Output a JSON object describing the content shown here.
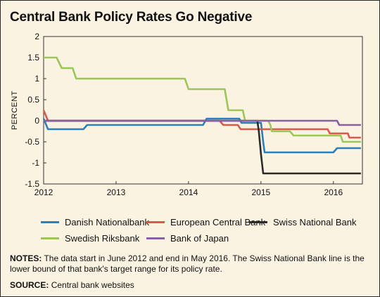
{
  "title": "Central Bank Policy Rates Go Negative",
  "notes_label": "NOTES:",
  "notes_text": "The data start in June 2012 and end in May 2016. The Swiss National Bank line is the lower bound of that bank's target range for its policy rate.",
  "source_label": "SOURCE:",
  "source_text": "Central bank websites",
  "chart_data": {
    "type": "line",
    "title": "Central Bank Policy Rates Go Negative",
    "ylabel": "PERCENT",
    "xlabel": "",
    "ylim": [
      -1.5,
      2
    ],
    "xlim": [
      2012.0,
      2016.4
    ],
    "y_ticks": [
      2,
      1.5,
      1,
      0.5,
      0,
      -0.5,
      -1,
      -1.5
    ],
    "x_ticks": [
      2012,
      2013,
      2014,
      2015,
      2016
    ],
    "grid": false,
    "legend_position": "bottom",
    "series": [
      {
        "name": "Danish Nationalbank",
        "color": "#2d7fb8",
        "points": [
          [
            2012.0,
            0.05
          ],
          [
            2012.06,
            -0.2
          ],
          [
            2012.55,
            -0.2
          ],
          [
            2012.6,
            -0.1
          ],
          [
            2014.2,
            -0.1
          ],
          [
            2014.25,
            0.05
          ],
          [
            2014.7,
            0.05
          ],
          [
            2014.73,
            -0.05
          ],
          [
            2015.0,
            -0.05
          ],
          [
            2015.03,
            -0.5
          ],
          [
            2015.05,
            -0.75
          ],
          [
            2016.0,
            -0.75
          ],
          [
            2016.05,
            -0.65
          ],
          [
            2016.38,
            -0.65
          ]
        ]
      },
      {
        "name": "European Central Bank",
        "color": "#d9594a",
        "points": [
          [
            2012.0,
            0.25
          ],
          [
            2012.06,
            0.0
          ],
          [
            2014.43,
            0.0
          ],
          [
            2014.48,
            -0.1
          ],
          [
            2014.68,
            -0.1
          ],
          [
            2014.72,
            -0.2
          ],
          [
            2015.92,
            -0.2
          ],
          [
            2015.95,
            -0.3
          ],
          [
            2016.2,
            -0.3
          ],
          [
            2016.22,
            -0.4
          ],
          [
            2016.38,
            -0.4
          ]
        ]
      },
      {
        "name": "Swiss National Bank",
        "color": "#2b2b2b",
        "points": [
          [
            2012.0,
            0.0
          ],
          [
            2014.95,
            0.0
          ],
          [
            2014.97,
            -0.25
          ],
          [
            2015.0,
            -0.8
          ],
          [
            2015.03,
            -1.25
          ],
          [
            2016.38,
            -1.25
          ]
        ]
      },
      {
        "name": "Swedish Riksbank",
        "color": "#9cc55a",
        "points": [
          [
            2012.0,
            1.5
          ],
          [
            2012.18,
            1.5
          ],
          [
            2012.25,
            1.25
          ],
          [
            2012.4,
            1.25
          ],
          [
            2012.45,
            1.0
          ],
          [
            2013.95,
            1.0
          ],
          [
            2014.0,
            0.75
          ],
          [
            2014.5,
            0.75
          ],
          [
            2014.55,
            0.25
          ],
          [
            2014.75,
            0.25
          ],
          [
            2014.78,
            0.0
          ],
          [
            2015.1,
            0.0
          ],
          [
            2015.13,
            -0.1
          ],
          [
            2015.15,
            -0.25
          ],
          [
            2015.4,
            -0.25
          ],
          [
            2015.45,
            -0.35
          ],
          [
            2016.1,
            -0.35
          ],
          [
            2016.13,
            -0.5
          ],
          [
            2016.38,
            -0.5
          ]
        ]
      },
      {
        "name": "Bank of Japan",
        "color": "#8a5ea3",
        "points": [
          [
            2012.0,
            0.0
          ],
          [
            2016.05,
            0.0
          ],
          [
            2016.08,
            -0.1
          ],
          [
            2016.38,
            -0.1
          ]
        ]
      }
    ]
  }
}
